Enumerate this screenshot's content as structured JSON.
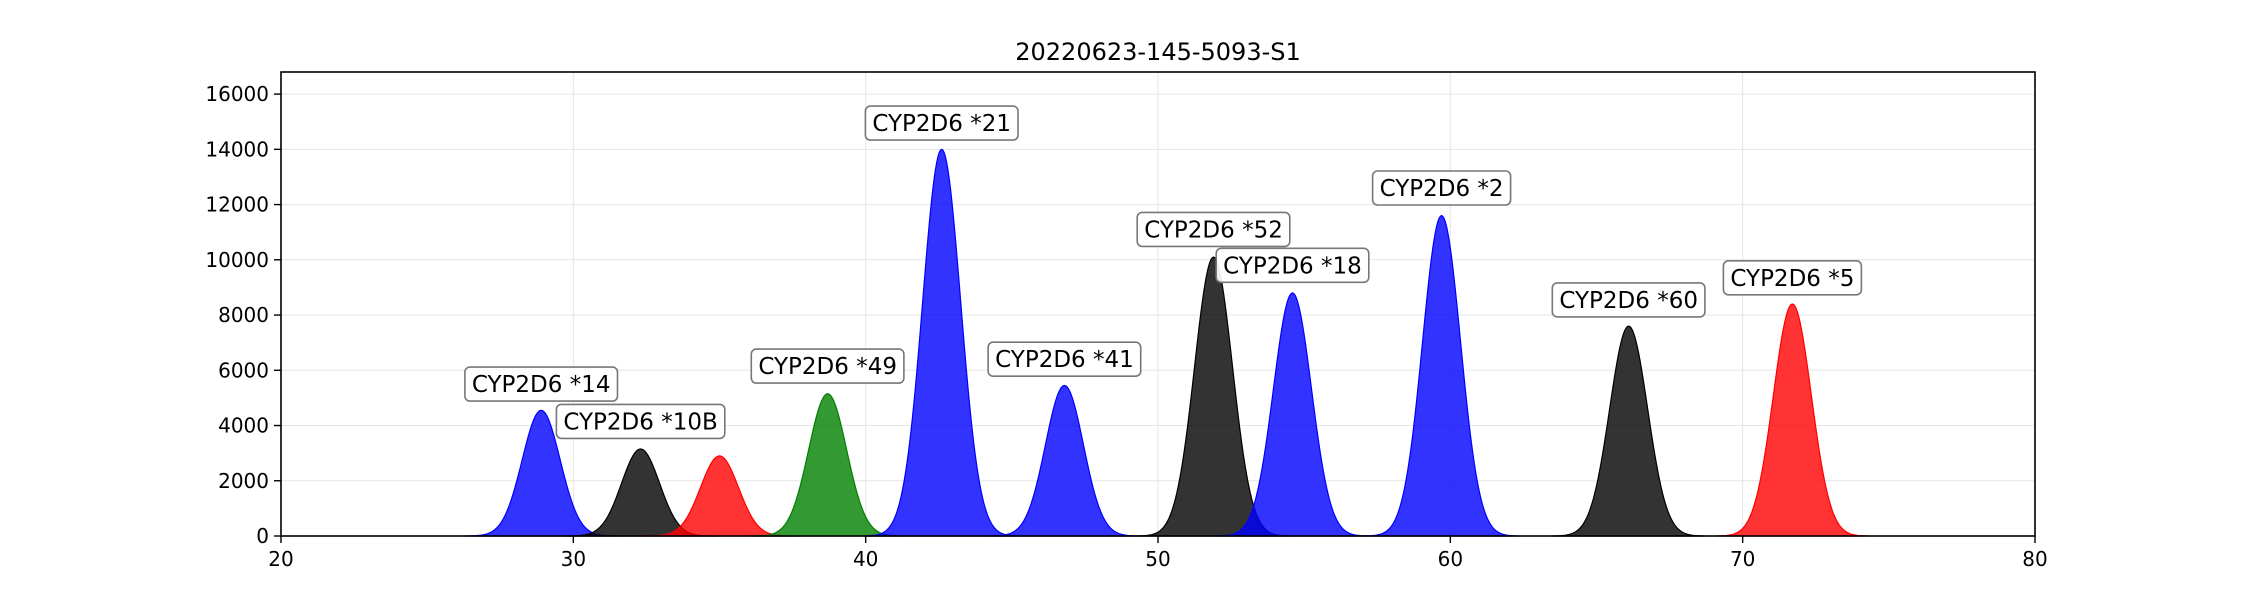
{
  "chart_data": {
    "type": "area",
    "title": "20220623-145-5093-S1",
    "xlabel": "",
    "ylabel": "",
    "xlim": [
      20,
      80
    ],
    "ylim": [
      0,
      16800
    ],
    "x_ticks": [
      20,
      30,
      40,
      50,
      60,
      70,
      80
    ],
    "y_ticks": [
      0,
      2000,
      4000,
      6000,
      8000,
      10000,
      12000,
      14000,
      16000
    ],
    "grid": true,
    "legend": "none",
    "peaks": [
      {
        "center": 28.9,
        "height": 4550,
        "sigma": 0.65,
        "color": "#0000ff"
      },
      {
        "center": 32.3,
        "height": 3150,
        "sigma": 0.65,
        "color": "#000000"
      },
      {
        "center": 35.0,
        "height": 2900,
        "sigma": 0.65,
        "color": "#ff0000"
      },
      {
        "center": 38.7,
        "height": 5150,
        "sigma": 0.65,
        "color": "#008000"
      },
      {
        "center": 42.6,
        "height": 14000,
        "sigma": 0.65,
        "color": "#0000ff"
      },
      {
        "center": 46.8,
        "height": 5450,
        "sigma": 0.65,
        "color": "#0000ff"
      },
      {
        "center": 51.9,
        "height": 10100,
        "sigma": 0.65,
        "color": "#000000"
      },
      {
        "center": 54.6,
        "height": 8800,
        "sigma": 0.65,
        "color": "#0000ff"
      },
      {
        "center": 59.7,
        "height": 11600,
        "sigma": 0.65,
        "color": "#0000ff"
      },
      {
        "center": 66.1,
        "height": 7600,
        "sigma": 0.65,
        "color": "#000000"
      },
      {
        "center": 71.7,
        "height": 8400,
        "sigma": 0.65,
        "color": "#ff0000"
      }
    ],
    "annotations": [
      {
        "text": "CYP2D6 *14",
        "x": 28.9,
        "y": 5500
      },
      {
        "text": "CYP2D6 *10B",
        "x": 32.3,
        "y": 4150
      },
      {
        "text": "CYP2D6 *49",
        "x": 38.7,
        "y": 6150
      },
      {
        "text": "CYP2D6 *21",
        "x": 42.6,
        "y": 14950
      },
      {
        "text": "CYP2D6 *41",
        "x": 46.8,
        "y": 6400
      },
      {
        "text": "CYP2D6 *52",
        "x": 51.9,
        "y": 11100
      },
      {
        "text": "CYP2D6 *18",
        "x": 54.6,
        "y": 9800
      },
      {
        "text": "CYP2D6 *2",
        "x": 59.7,
        "y": 12600
      },
      {
        "text": "CYP2D6 *60",
        "x": 66.1,
        "y": 8550
      },
      {
        "text": "CYP2D6 *5",
        "x": 71.7,
        "y": 9350
      }
    ]
  }
}
